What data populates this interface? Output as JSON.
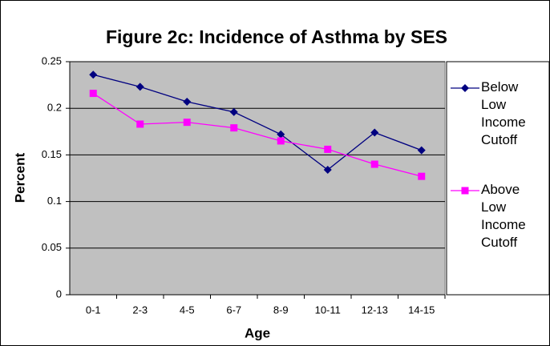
{
  "chart_data": {
    "type": "line",
    "title": "Figure 2c: Incidence of Asthma by SES",
    "x_label": "Age",
    "y_label": "Percent",
    "categories": [
      "0-1",
      "2-3",
      "4-5",
      "6-7",
      "8-9",
      "10-11",
      "12-13",
      "14-15"
    ],
    "series": [
      {
        "name": "Below Low Income Cutoff",
        "color": "#000080",
        "marker": "diamond",
        "values": [
          0.236,
          0.223,
          0.207,
          0.196,
          0.172,
          0.134,
          0.174,
          0.155
        ]
      },
      {
        "name": "Above Low Income Cutoff",
        "color": "#ff00ff",
        "marker": "square",
        "values": [
          0.216,
          0.183,
          0.185,
          0.179,
          0.165,
          0.156,
          0.14,
          0.127
        ]
      }
    ],
    "ylim": [
      0,
      0.25
    ],
    "yticks": [
      0,
      0.05,
      0.1,
      0.15,
      0.2,
      0.25
    ],
    "grid": true,
    "legend": "right"
  }
}
